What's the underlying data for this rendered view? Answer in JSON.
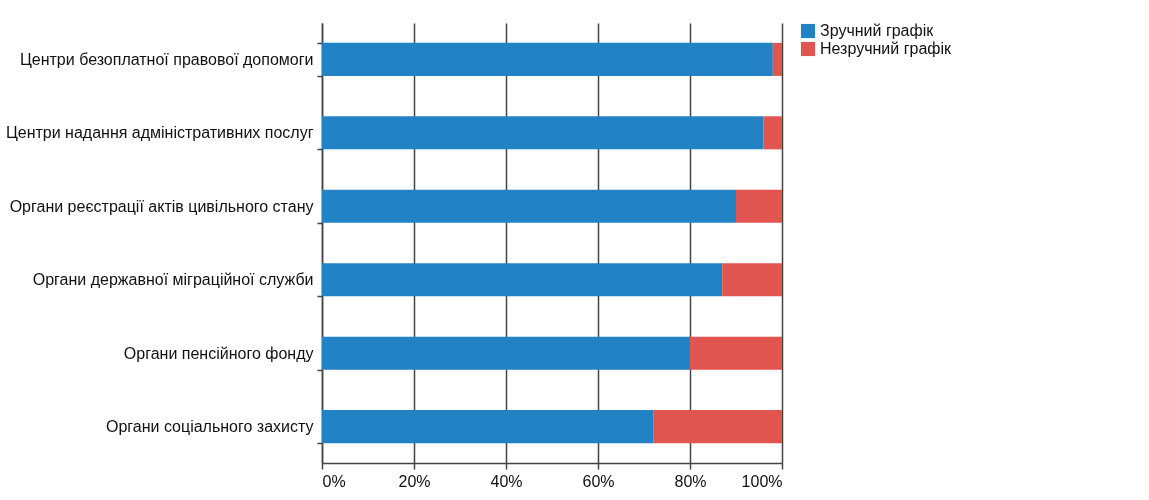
{
  "chart_data": {
    "type": "bar",
    "orientation": "horizontal",
    "stacked": true,
    "categories": [
      "Центри безоплатної правової допомоги",
      "Центри надання адміністративних послуг",
      "Органи реєстрації актів цивільного стану",
      "Органи державної міграційної служби",
      "Органи пенсійного фонду",
      "Органи соціального захисту"
    ],
    "series": [
      {
        "name": "Зручний графік",
        "color": "#2382c4",
        "values": [
          98,
          96,
          90,
          87,
          80,
          72
        ]
      },
      {
        "name": "Незручний графік",
        "color": "#e05550",
        "values": [
          2,
          4,
          10,
          13,
          20,
          28
        ]
      }
    ],
    "xlim": [
      0,
      100
    ],
    "xticks": [
      {
        "value": 0,
        "label": "0%"
      },
      {
        "value": 20,
        "label": "20%"
      },
      {
        "value": 40,
        "label": "40%"
      },
      {
        "value": 60,
        "label": "60%"
      },
      {
        "value": 80,
        "label": "80%"
      },
      {
        "value": 100,
        "label": "100%"
      }
    ],
    "grid": "x",
    "legend": "right"
  }
}
